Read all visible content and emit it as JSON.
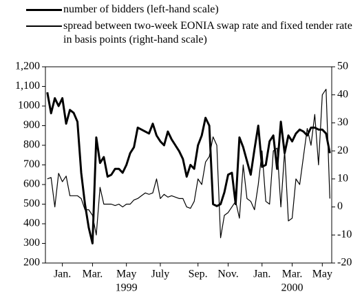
{
  "chart_data": {
    "type": "line",
    "categories": [
      null,
      null,
      null,
      null,
      "Jan.",
      null,
      null,
      null,
      null,
      null,
      null,
      null,
      "Mar.",
      null,
      null,
      null,
      null,
      null,
      null,
      null,
      null,
      "May",
      null,
      null,
      null,
      null,
      null,
      null,
      null,
      null,
      "July",
      null,
      null,
      null,
      null,
      null,
      null,
      null,
      null,
      null,
      "Sep.",
      null,
      null,
      null,
      null,
      null,
      null,
      null,
      "Nov.",
      null,
      null,
      null,
      null,
      null,
      null,
      null,
      null,
      "Jan.",
      null,
      null,
      null,
      null,
      null,
      null,
      null,
      "Mar.",
      null,
      null,
      null,
      null,
      null,
      null,
      null,
      "May",
      null,
      null
    ],
    "years": [
      "1999",
      "2000"
    ],
    "series": [
      {
        "name": "number of bidders (left-hand scale)",
        "color": "#000000",
        "width": 3,
        "values": [
          1070,
          963,
          1040,
          1000,
          1040,
          910,
          980,
          965,
          920,
          660,
          500,
          380,
          300,
          840,
          710,
          740,
          640,
          650,
          680,
          680,
          660,
          700,
          760,
          790,
          890,
          880,
          870,
          860,
          910,
          850,
          820,
          800,
          870,
          830,
          800,
          770,
          730,
          640,
          700,
          680,
          800,
          850,
          940,
          900,
          500,
          490,
          500,
          560,
          650,
          660,
          500,
          840,
          790,
          720,
          650,
          780,
          900,
          690,
          700,
          820,
          850,
          680,
          920,
          760,
          850,
          820,
          860,
          880,
          870,
          850,
          890,
          890,
          880,
          880,
          860,
          760
        ]
      },
      {
        "name": "spread between two-week EONIA swap rate and fixed tender rate in basis points (right-hand scale)",
        "color": "#000000",
        "width": 1.2,
        "axis": "y2",
        "values": [
          10,
          10.5,
          0,
          12,
          9,
          11,
          4,
          4,
          4,
          3,
          -1,
          -1,
          -3,
          -10,
          7,
          1,
          1,
          1,
          0.5,
          1,
          0,
          1,
          1,
          2.5,
          3,
          4,
          5,
          4.5,
          5,
          10,
          3,
          4.5,
          3.5,
          4,
          3.5,
          3,
          3,
          0,
          -0.5,
          2,
          10,
          8,
          16,
          18,
          25,
          22,
          -11,
          -3,
          -2,
          0,
          2,
          -4,
          15,
          3,
          2,
          -1,
          8,
          20,
          2,
          1,
          20,
          21,
          0,
          20,
          -5,
          -4,
          10,
          8,
          18,
          28,
          22,
          33,
          15,
          40,
          42,
          3
        ]
      }
    ],
    "ylim": [
      200,
      1200
    ],
    "yticks": [
      200,
      300,
      400,
      500,
      600,
      700,
      800,
      900,
      1000,
      {
        "value": 1100,
        "label": "1,100"
      },
      {
        "value": 1200,
        "label": "1,200"
      }
    ],
    "y2lim": [
      -20,
      50
    ],
    "y2ticks": [
      -20,
      -10,
      0,
      10,
      20,
      30,
      40,
      50
    ]
  }
}
